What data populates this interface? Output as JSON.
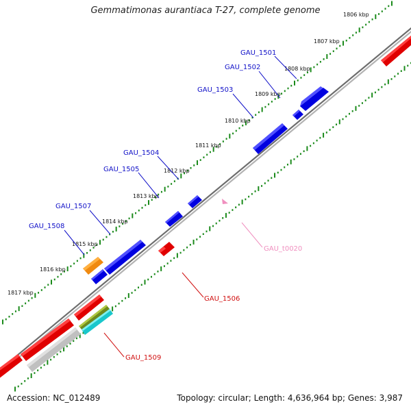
{
  "title": "Gemmatimonas aurantiaca T-27, complete genome",
  "footer": {
    "accession": "Accession: NC_012489",
    "summary": "Topology: circular; Length: 4,636,964 bp; Genes: 3,987"
  },
  "colors": {
    "forward_gene": "#0a0adf",
    "reverse_gene": "#ee0b0b",
    "rna_gene": "#f07ab0",
    "orange_gene": "#f08a10",
    "grey_gene": "#bdbdbd",
    "olive_gene": "#6e8a1e",
    "cyan_gene": "#19c7cc",
    "backbone": "#8a8a8a",
    "tick": "#1a8a1a",
    "blue_label": "#1010c8",
    "red_label": "#d01010",
    "pink_label": "#f08fbf"
  },
  "ticks": [
    "1806 kbp",
    "1807 kbp",
    "1808 kbp",
    "1809 kbp",
    "1810 kbp",
    "1811 kbp",
    "1812 kbp",
    "1813 kbp",
    "1814 kbp",
    "1815 kbp",
    "1816 kbp",
    "1817 kbp"
  ],
  "genes": [
    {
      "id": "GAU_1501",
      "strand": "forward",
      "color": "blue"
    },
    {
      "id": "GAU_1502",
      "strand": "forward",
      "color": "blue"
    },
    {
      "id": "GAU_1503",
      "strand": "forward",
      "color": "blue"
    },
    {
      "id": "GAU_1504",
      "strand": "forward",
      "color": "blue"
    },
    {
      "id": "GAU_1505",
      "strand": "forward",
      "color": "blue"
    },
    {
      "id": "GAU_1507",
      "strand": "forward",
      "color": "blue"
    },
    {
      "id": "GAU_1508",
      "strand": "forward",
      "color": "blue"
    },
    {
      "id": "GAU_1506",
      "strand": "reverse",
      "color": "red"
    },
    {
      "id": "GAU_1509",
      "strand": "reverse",
      "color": "red"
    },
    {
      "id": "GAU_t0020",
      "strand": "reverse",
      "color": "pink"
    }
  ]
}
